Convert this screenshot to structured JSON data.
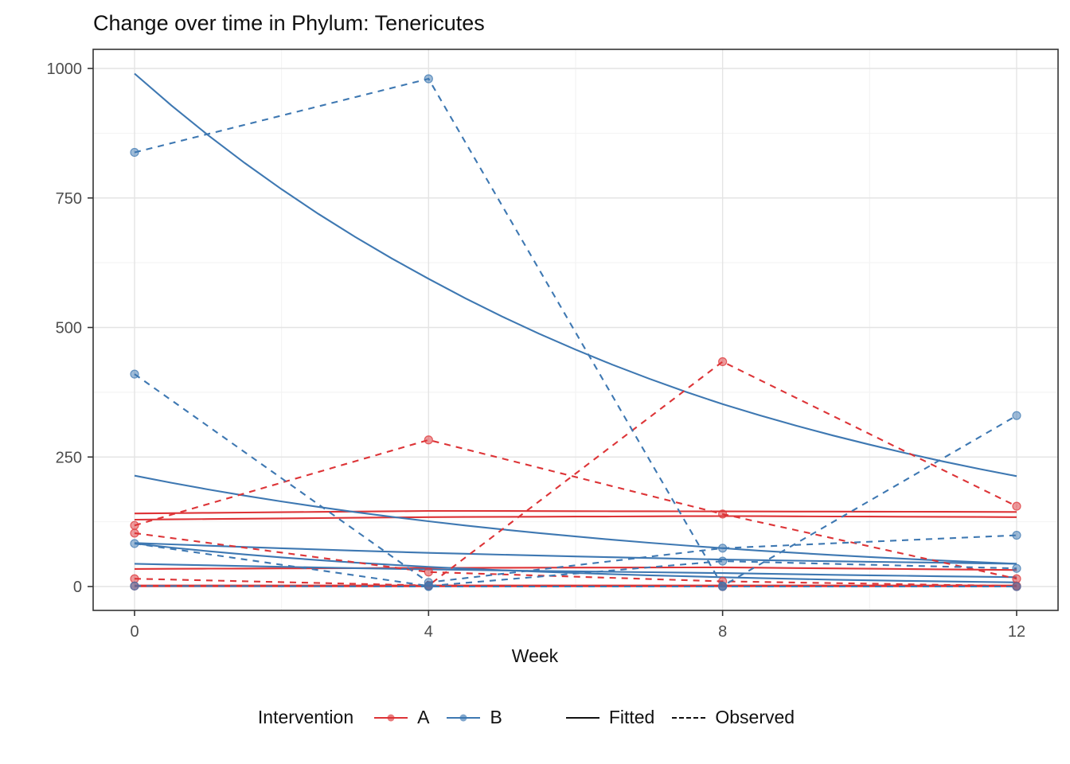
{
  "title": "Change over time in Phylum: Tenericutes",
  "colors": {
    "A": "#DD3437",
    "B": "#3E78B2",
    "grid_major": "#E4E4E4",
    "grid_minor": "#F2F2F2",
    "panel_border": "#343434",
    "tick_text": "#4D4D4D",
    "label_text": "#111111",
    "background": "#FFFFFF"
  },
  "legend": {
    "title": "Intervention",
    "group_a_label": "A",
    "group_b_label": "B",
    "fitted_label": "Fitted",
    "observed_label": "Observed"
  },
  "chart_data": {
    "type": "line",
    "title": "Change over time in Phylum: Tenericutes",
    "xlabel": "Week",
    "ylabel": "",
    "x": [
      0,
      4,
      8,
      12
    ],
    "xticks": [
      0,
      4,
      8,
      12
    ],
    "yticks": [
      0,
      250,
      500,
      750,
      1000
    ],
    "y_minor": [
      125,
      375,
      625,
      875
    ],
    "x_minor": [
      2,
      6,
      10
    ],
    "ylim": [
      0,
      1037
    ],
    "xlim": [
      -0.56,
      12.56
    ],
    "grid": true,
    "legend_position": "bottom",
    "linetypes": {
      "fitted": "solid",
      "observed": "dashed"
    },
    "series": [
      {
        "id": "A1",
        "group": "A",
        "fitted": [
          141,
          146,
          145,
          144
        ],
        "observed": [
          118,
          283,
          140,
          15
        ]
      },
      {
        "id": "A2",
        "group": "A",
        "fitted": [
          129,
          134,
          136,
          134
        ],
        "observed": [
          103,
          28,
          10,
          1
        ]
      },
      {
        "id": "A3",
        "group": "A",
        "fitted": [
          34,
          36,
          37,
          32
        ],
        "observed": [
          15,
          2,
          434,
          155
        ]
      },
      {
        "id": "A4",
        "group": "A",
        "fitted": [
          2,
          2,
          2,
          2
        ],
        "observed": [
          1,
          1,
          0,
          0
        ]
      },
      {
        "id": "A5",
        "group": "A",
        "fitted": [
          0.5,
          0.5,
          0.5,
          0.5
        ],
        "observed": null
      },
      {
        "id": "B1",
        "group": "B",
        "fitted": [
          990,
          594,
          352,
          213
        ],
        "observed": [
          838,
          980,
          1,
          330
        ]
      },
      {
        "id": "B2",
        "group": "B",
        "fitted": [
          214,
          126,
          74,
          44
        ],
        "observed": [
          410,
          8,
          74,
          99
        ]
      },
      {
        "id": "B3",
        "group": "B",
        "fitted": [
          83,
          38,
          18,
          8
        ],
        "observed": [
          83,
          1,
          49,
          35
        ]
      },
      {
        "id": "B4",
        "group": "B",
        "fitted": [
          84,
          65,
          52,
          44
        ],
        "observed": [
          1,
          0,
          0,
          0
        ]
      },
      {
        "id": "B5",
        "group": "B",
        "fitted": [
          44,
          33,
          26,
          18
        ],
        "observed": null
      }
    ]
  }
}
